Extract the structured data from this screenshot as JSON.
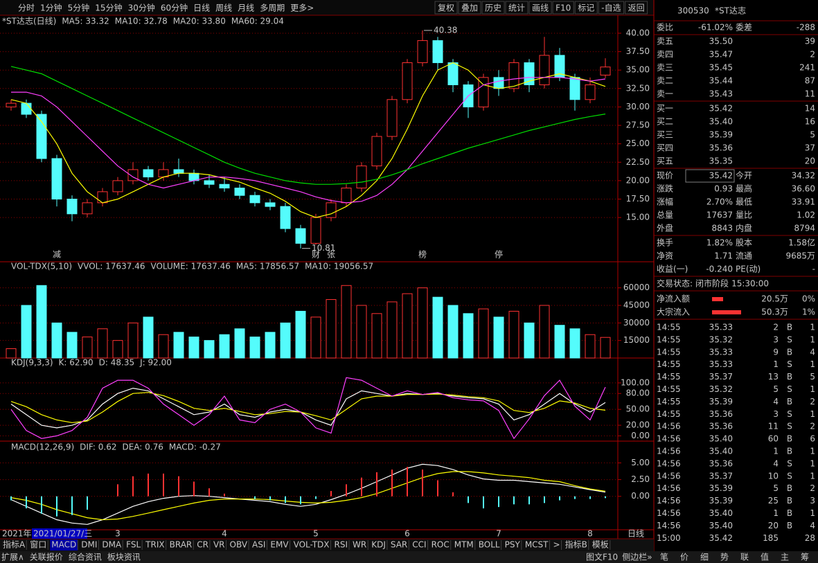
{
  "toolbar": {
    "periods": [
      "分时",
      "1分钟",
      "5分钟",
      "15分钟",
      "30分钟",
      "60分钟",
      "日线",
      "周线",
      "月线",
      "多周期",
      "更多>"
    ],
    "buttons": [
      "复权",
      "叠加",
      "历史",
      "统计",
      "画线",
      "F10",
      "标记",
      "-自选",
      "返回"
    ]
  },
  "chart_data": [
    {
      "type": "candlestick",
      "title": "*ST达志(日线)",
      "categories": [
        null,
        null,
        null,
        null,
        null,
        null,
        null,
        "3",
        null,
        null,
        null,
        null,
        null,
        null,
        "4",
        null,
        null,
        null,
        null,
        null,
        "5",
        null,
        null,
        null,
        null,
        null,
        "6",
        null,
        null,
        null,
        null,
        null,
        "7",
        null,
        null,
        null,
        null,
        null,
        "8",
        null
      ],
      "events": [
        null,
        null,
        null,
        {
          "label": "减",
          "color": "#00d000"
        },
        null,
        null,
        null,
        null,
        null,
        null,
        null,
        null,
        null,
        null,
        null,
        null,
        null,
        null,
        null,
        null,
        {
          "label": "财",
          "color": "#ffffff"
        },
        {
          "label": "张",
          "color": "#ff4040"
        },
        null,
        null,
        null,
        null,
        null,
        {
          "label": "榜",
          "color": "#ff9900"
        },
        null,
        null,
        null,
        null,
        {
          "label": "停",
          "color": "#00e0e0"
        },
        null,
        null,
        null,
        null,
        null,
        null,
        null
      ],
      "candles": [
        [
          30,
          31,
          29.5,
          30.5
        ],
        [
          30.5,
          31,
          28.5,
          29
        ],
        [
          29,
          29.5,
          22.5,
          23
        ],
        [
          23,
          23.5,
          16.5,
          17.5
        ],
        [
          17.5,
          18,
          14.5,
          15.5
        ],
        [
          15.5,
          17.5,
          15,
          17
        ],
        [
          17,
          19,
          16.5,
          18.5
        ],
        [
          18.5,
          20.5,
          18,
          20
        ],
        [
          20,
          22.5,
          19.5,
          21.5
        ],
        [
          21.5,
          22,
          20,
          20.5
        ],
        [
          20.5,
          22.5,
          20,
          21.5
        ],
        [
          21.5,
          23,
          20.5,
          21
        ],
        [
          21,
          21.5,
          19.5,
          20
        ],
        [
          20,
          20.8,
          19,
          19.5
        ],
        [
          19.5,
          20.5,
          18.5,
          19
        ],
        [
          19,
          19.5,
          17.5,
          18
        ],
        [
          18,
          18.5,
          16.5,
          17
        ],
        [
          17,
          17.5,
          16,
          16.5
        ],
        [
          16.5,
          17,
          13,
          13.5
        ],
        [
          13.5,
          14,
          10.81,
          11.5
        ],
        [
          11.5,
          15.5,
          11.3,
          15
        ],
        [
          15,
          17.5,
          14.5,
          17
        ],
        [
          17,
          19.5,
          16.5,
          19
        ],
        [
          19,
          22.5,
          18.5,
          22
        ],
        [
          22,
          26.5,
          21.5,
          26
        ],
        [
          26,
          31.5,
          25.5,
          31
        ],
        [
          31,
          36.5,
          30.5,
          36
        ],
        [
          36,
          40.38,
          35.5,
          39
        ],
        [
          39,
          39.5,
          35,
          36
        ],
        [
          36,
          36.5,
          32,
          33
        ],
        [
          33,
          33.5,
          28.5,
          30
        ],
        [
          30,
          34.5,
          29.5,
          34
        ],
        [
          34,
          35,
          31.5,
          32.5
        ],
        [
          32.5,
          36.5,
          32,
          36
        ],
        [
          36,
          36.5,
          32,
          33
        ],
        [
          33,
          39.5,
          32.5,
          37
        ],
        [
          37,
          38,
          33.5,
          34
        ],
        [
          34,
          34.5,
          29.5,
          31
        ],
        [
          31,
          34,
          30.5,
          33
        ],
        [
          34.32,
          36.6,
          33.91,
          35.42
        ]
      ],
      "series": [
        {
          "name": "MA5: 33.32",
          "color": "#ffffff"
        },
        {
          "name": "MA10: 32.78",
          "color": "#ffff00",
          "values": [
            31,
            30.5,
            28,
            25,
            21,
            18.5,
            17,
            17.5,
            18.5,
            19.5,
            20.5,
            21,
            21,
            20.8,
            20.3,
            19.8,
            19,
            18.3,
            17.2,
            15.8,
            15,
            15.5,
            16.5,
            18,
            20,
            23,
            27,
            31.5,
            35,
            36,
            35,
            33,
            32.5,
            32.8,
            33.5,
            34,
            34.5,
            34,
            33.5,
            32.78
          ]
        },
        {
          "name": "MA20: 33.80",
          "color": "#ff40ff",
          "values": [
            32,
            32,
            31.5,
            30,
            28,
            26,
            24,
            22,
            20.5,
            19.5,
            19,
            19.5,
            20,
            20.5,
            20.5,
            20.3,
            20,
            19.5,
            19,
            18.5,
            17.8,
            17.3,
            17,
            17.2,
            18,
            19.5,
            21.5,
            24,
            26.5,
            29,
            31.5,
            33,
            33.5,
            33.8,
            34,
            34,
            34,
            33.8,
            33.5,
            33.8
          ]
        },
        {
          "name": "MA60: 29.04",
          "color": "#00e000",
          "values": [
            35.5,
            35,
            34.5,
            33.5,
            32.5,
            31.5,
            30.5,
            29.5,
            28.5,
            27.5,
            26.5,
            25.5,
            24.5,
            23.5,
            22.5,
            21.7,
            21,
            20.5,
            20,
            19.7,
            19.5,
            19.5,
            19.6,
            19.8,
            20.2,
            20.8,
            21.5,
            22.3,
            23,
            23.7,
            24.4,
            25,
            25.6,
            26.2,
            26.8,
            27.3,
            27.8,
            28.3,
            28.7,
            29.04
          ]
        }
      ],
      "ylim": [
        9,
        40.56
      ],
      "yticks": [
        {
          "value": 15,
          "label": "15.00"
        },
        {
          "value": 17.5,
          "label": "17.50"
        },
        {
          "value": 20,
          "label": "20.00"
        },
        {
          "value": 22.5,
          "label": "22.50"
        },
        {
          "value": 25,
          "label": "25.00"
        },
        {
          "value": 27.5,
          "label": "27.50"
        },
        {
          "value": 30,
          "label": "30.00"
        },
        {
          "value": 32.5,
          "label": "32.50"
        },
        {
          "value": 35,
          "label": "35.00"
        },
        {
          "value": 37.5,
          "label": "37.50"
        },
        {
          "value": 40,
          "label": "40.00"
        }
      ],
      "grid": true
    },
    {
      "type": "bar",
      "title": "VOL-TDX(5,10)",
      "series": [
        {
          "name": "VVOL: 17637.46",
          "color": "#ffffff"
        },
        {
          "name": "VOLUME: 17637.46",
          "color": "#ffff00",
          "style": "bars",
          "values": [
            8000,
            45000,
            62000,
            30000,
            22000,
            18000,
            25000,
            15000,
            30000,
            35000,
            20000,
            22000,
            18000,
            15000,
            20000,
            25000,
            18000,
            22000,
            30000,
            40000,
            35000,
            50000,
            62000,
            45000,
            38000,
            48000,
            55000,
            60000,
            52000,
            45000,
            38000,
            42000,
            35000,
            40000,
            30000,
            45000,
            28000,
            25000,
            20000,
            17637.46
          ]
        },
        {
          "name": "MA5: 17856.57",
          "color": "#ffff00"
        },
        {
          "name": "MA10: 19056.57",
          "color": "#ff40ff"
        }
      ],
      "ylim": [
        0,
        74000
      ],
      "yticks": [
        15000,
        30000,
        45000,
        60000
      ],
      "grid": true
    },
    {
      "type": "line",
      "title": "KDJ(9,3,3)",
      "series": [
        {
          "name": "K: 62.90",
          "color": "#ffffff",
          "values": [
            60,
            40,
            20,
            15,
            20,
            30,
            60,
            80,
            90,
            85,
            70,
            55,
            40,
            45,
            60,
            40,
            35,
            45,
            50,
            45,
            30,
            20,
            70,
            85,
            80,
            75,
            80,
            78,
            80,
            75,
            72,
            70,
            60,
            30,
            40,
            60,
            80,
            60,
            45,
            62.9
          ]
        },
        {
          "name": "D: 48.35",
          "color": "#ffff00",
          "values": [
            65,
            55,
            40,
            30,
            25,
            28,
            45,
            65,
            80,
            82,
            76,
            65,
            52,
            48,
            52,
            46,
            40,
            42,
            46,
            45,
            38,
            30,
            50,
            70,
            75,
            75,
            78,
            78,
            79,
            77,
            74,
            72,
            66,
            48,
            44,
            52,
            66,
            62,
            52,
            48.35
          ]
        },
        {
          "name": "J: 92.00",
          "color": "#ff40ff",
          "values": [
            50,
            10,
            -5,
            0,
            10,
            35,
            90,
            105,
            105,
            90,
            60,
            40,
            20,
            40,
            75,
            30,
            25,
            50,
            60,
            45,
            15,
            5,
            110,
            105,
            90,
            75,
            85,
            78,
            82,
            72,
            68,
            66,
            48,
            -5,
            32,
            76,
            105,
            56,
            30,
            92
          ]
        }
      ],
      "ylim": [
        -10,
        130
      ],
      "yticks": [
        {
          "value": 0,
          "label": "0.00"
        },
        {
          "value": 20,
          "label": "20.00"
        },
        {
          "value": 50,
          "label": "50.00"
        },
        {
          "value": 80,
          "label": "80.00"
        },
        {
          "value": 100,
          "label": "100.00"
        }
      ],
      "grid": true
    },
    {
      "type": "line",
      "title": "MACD(12,26,9)",
      "series": [
        {
          "name": "DIF: 0.62",
          "color": "#ffffff",
          "values": [
            -0.5,
            -1.5,
            -2.5,
            -3.5,
            -4,
            -4.2,
            -3.5,
            -2.5,
            -1.5,
            -0.8,
            -0.3,
            0,
            0.1,
            0,
            -0.2,
            -0.4,
            -0.6,
            -0.8,
            -1.2,
            -1.5,
            -1.2,
            -0.5,
            0.3,
            1.2,
            2.2,
            3.2,
            4.2,
            4.8,
            4.6,
            4,
            3.2,
            2.6,
            2.4,
            2.4,
            2.2,
            2,
            1.8,
            1.4,
            1,
            0.62
          ]
        },
        {
          "name": "DEA: 0.76",
          "color": "#ffff00",
          "values": [
            -0.2,
            -0.6,
            -1.2,
            -2,
            -2.6,
            -3.2,
            -3.5,
            -3.4,
            -3,
            -2.5,
            -2,
            -1.5,
            -1,
            -0.6,
            -0.4,
            -0.4,
            -0.4,
            -0.5,
            -0.7,
            -0.9,
            -1,
            -0.9,
            -0.6,
            -0.2,
            0.4,
            1.2,
            2,
            2.8,
            3.4,
            3.7,
            3.7,
            3.5,
            3.2,
            3,
            2.8,
            2.4,
            2.2,
            1.6,
            1.1,
            0.76
          ]
        },
        {
          "name": "MACD: -0.27",
          "color": "#ff40ff",
          "style": "bars",
          "values": [
            -0.6,
            -1.8,
            -2.6,
            -3,
            -2.8,
            -2,
            0,
            1.8,
            3,
            3.4,
            3.4,
            3,
            2.2,
            1.2,
            0.4,
            0,
            -0.4,
            -0.6,
            -1,
            -1.2,
            -0.4,
            0.8,
            1.8,
            2.8,
            3.6,
            4,
            4.4,
            4,
            2.4,
            0.6,
            -1,
            -1.8,
            -1.6,
            -1.2,
            -1.2,
            -1,
            -0.6,
            -0.4,
            -0.4,
            -0.27
          ]
        }
      ],
      "ylim": [
        -5,
        6.7
      ],
      "yticks": [
        {
          "value": 0,
          "label": "0.00"
        },
        {
          "value": 2.5,
          "label": "2.50"
        },
        {
          "value": 5,
          "label": "5.00"
        }
      ],
      "grid": true
    }
  ],
  "date_bar": {
    "year": "2021年",
    "cursor": "2021/01/27/三",
    "period": "日线"
  },
  "tabs": [
    "指标A",
    "窗口",
    "MACD",
    "DMI",
    "DMA",
    "FSL",
    "TRIX",
    "BRAR",
    "CR",
    "VR",
    "OBV",
    "ASI",
    "EMV",
    "VOL-TDX",
    "RSI",
    "WR",
    "KDJ",
    "SAR",
    "CCI",
    "ROC",
    "MTM",
    "BOLL",
    "PSY",
    "MCST",
    ">",
    "指标B",
    "模板"
  ],
  "footer": {
    "left": [
      "扩展∧",
      "关联报价",
      "综合资讯",
      "板块资讯"
    ],
    "right": [
      "图文F10",
      "侧边栏»"
    ],
    "side": [
      "笔",
      "价",
      "细",
      "势",
      "联",
      "值",
      "主",
      "筹"
    ]
  },
  "quote": {
    "code": "300530",
    "name": "*ST达志",
    "ratio": [
      "委比",
      "-61.02%",
      "委差",
      "-288"
    ],
    "asks": [
      [
        "卖五",
        "35.50",
        "39"
      ],
      [
        "卖四",
        "35.47",
        "2"
      ],
      [
        "卖三",
        "35.45",
        "241"
      ],
      [
        "卖二",
        "35.44",
        "87"
      ],
      [
        "卖一",
        "35.43",
        "11"
      ]
    ],
    "bids": [
      [
        "买一",
        "35.42",
        "14"
      ],
      [
        "买二",
        "35.40",
        "16"
      ],
      [
        "买三",
        "35.39",
        "5"
      ],
      [
        "买四",
        "35.36",
        "37"
      ],
      [
        "买五",
        "35.35",
        "20"
      ]
    ],
    "stats": [
      [
        "现价",
        "35.42",
        "今开",
        "34.32"
      ],
      [
        "涨跌",
        "0.93",
        "最高",
        "36.60"
      ],
      [
        "涨幅",
        "2.70%",
        "最低",
        "33.91"
      ],
      [
        "总量",
        "17637",
        "量比",
        "1.02"
      ],
      [
        "外盘",
        "8843",
        "内盘",
        "8794"
      ],
      [
        "换手",
        "1.82%",
        "股本",
        "1.58亿"
      ],
      [
        "净资",
        "1.71",
        "流通",
        "9685万"
      ],
      [
        "收益(一)",
        "-0.240",
        "PE(动)",
        "-"
      ]
    ],
    "status": [
      "交易状态:",
      "闭市阶段",
      "15:30:00"
    ],
    "flows": [
      [
        "净流入额",
        "20.5万",
        "0%"
      ],
      [
        "大宗流入",
        "50.3万",
        "1%"
      ]
    ],
    "trades": [
      [
        "14:55",
        "35.33",
        "2",
        "B",
        "1"
      ],
      [
        "14:55",
        "35.32",
        "3",
        "S",
        "1"
      ],
      [
        "14:55",
        "35.33",
        "9",
        "B",
        "4"
      ],
      [
        "14:55",
        "35.33",
        "1",
        "S",
        "1"
      ],
      [
        "14:55",
        "35.37",
        "13",
        "B",
        "5"
      ],
      [
        "14:55",
        "35.32",
        "5",
        "S",
        "1"
      ],
      [
        "14:55",
        "35.39",
        "4",
        "B",
        "2"
      ],
      [
        "14:55",
        "35.36",
        "3",
        "S",
        "1"
      ],
      [
        "14:56",
        "35.36",
        "11",
        "S",
        "2"
      ],
      [
        "14:56",
        "35.40",
        "60",
        "B",
        "6"
      ],
      [
        "14:56",
        "35.40",
        "1",
        "B",
        "1"
      ],
      [
        "14:56",
        "35.36",
        "4",
        "S",
        "1"
      ],
      [
        "14:56",
        "35.37",
        "10",
        "S",
        "1"
      ],
      [
        "14:56",
        "35.39",
        "5",
        "B",
        "2"
      ],
      [
        "14:56",
        "35.39",
        "25",
        "B",
        "3"
      ],
      [
        "14:56",
        "35.40",
        "1",
        "B",
        "1"
      ],
      [
        "14:56",
        "35.40",
        "20",
        "B",
        "4"
      ],
      [
        "15:00",
        "35.42",
        "185",
        "28"
      ]
    ]
  }
}
